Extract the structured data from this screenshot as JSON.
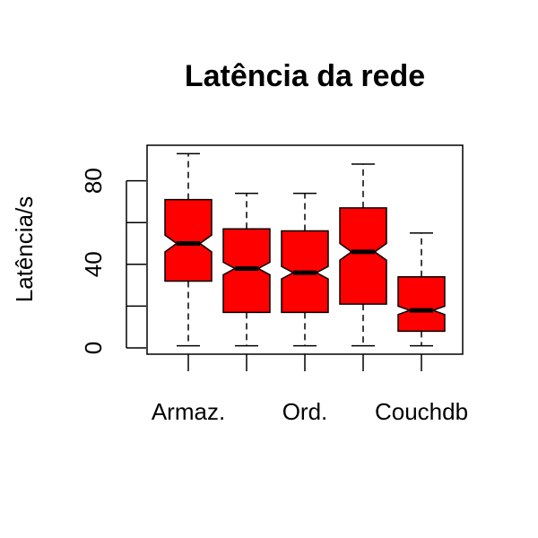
{
  "chart_data": {
    "type": "boxplot",
    "title": "Latência da rede",
    "xlabel": "",
    "ylabel": "Latência/s",
    "ylim": [
      -3,
      97
    ],
    "yticks": [
      0,
      40,
      80
    ],
    "notched": true,
    "box_color": "#ff0000",
    "categories": [
      "Armaz.",
      "",
      "Ord.",
      "",
      "Couchdb"
    ],
    "boxes": [
      {
        "min": 1,
        "q1": 32,
        "median": 50,
        "q3": 71,
        "max": 93,
        "notch_low": 46,
        "notch_high": 54
      },
      {
        "min": 1,
        "q1": 17,
        "median": 38,
        "q3": 57,
        "max": 74,
        "notch_low": 35,
        "notch_high": 41
      },
      {
        "min": 1,
        "q1": 17,
        "median": 36,
        "q3": 56,
        "max": 74,
        "notch_low": 33,
        "notch_high": 39
      },
      {
        "min": 1,
        "q1": 21,
        "median": 46,
        "q3": 67,
        "max": 88,
        "notch_low": 42,
        "notch_high": 50
      },
      {
        "min": 1,
        "q1": 8,
        "median": 18,
        "q3": 34,
        "max": 55,
        "notch_low": 16,
        "notch_high": 20
      }
    ]
  }
}
